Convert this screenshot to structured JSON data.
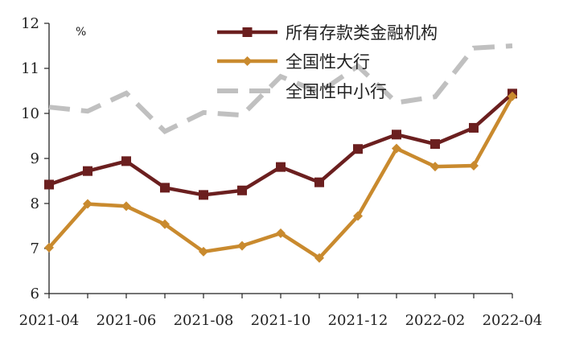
{
  "chart_data": {
    "type": "line",
    "unit_label": "%",
    "x": [
      "2021-04",
      "2021-05",
      "2021-06",
      "2021-07",
      "2021-08",
      "2021-09",
      "2021-10",
      "2021-11",
      "2021-12",
      "2022-01",
      "2022-02",
      "2022-03",
      "2022-04"
    ],
    "x_tick_labels": [
      "2021-04",
      "2021-06",
      "2021-08",
      "2021-10",
      "2021-12",
      "2022-02",
      "2022-04"
    ],
    "ylim": [
      6,
      12
    ],
    "y_ticks": [
      6,
      7,
      8,
      9,
      10,
      11,
      12
    ],
    "grid": false,
    "legend_position": "top-right",
    "series": [
      {
        "name": "所有存款类金融机构",
        "color": "#6b1f1f",
        "line_style": "solid",
        "marker": "square",
        "values": [
          8.42,
          8.72,
          8.94,
          8.35,
          8.19,
          8.29,
          8.81,
          8.47,
          9.21,
          9.53,
          9.32,
          9.68,
          10.44
        ]
      },
      {
        "name": "全国性大行",
        "color": "#c98a2e",
        "line_style": "solid",
        "marker": "diamond",
        "values": [
          7.02,
          7.99,
          7.94,
          7.54,
          6.93,
          7.06,
          7.34,
          6.79,
          7.72,
          9.22,
          8.82,
          8.84,
          10.38
        ]
      },
      {
        "name": "全国性中小行",
        "color": "#c0c0c0",
        "line_style": "dashed",
        "marker": "none",
        "values": [
          10.14,
          10.05,
          10.45,
          9.6,
          10.02,
          9.96,
          10.82,
          10.47,
          11.05,
          10.24,
          10.37,
          11.45,
          11.5
        ]
      }
    ]
  }
}
